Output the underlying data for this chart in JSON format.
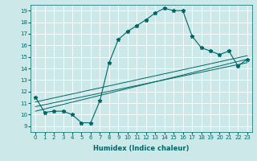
{
  "xlabel": "Humidex (Indice chaleur)",
  "ylabel": "",
  "bg_color": "#cce8e8",
  "line_color": "#006666",
  "xlim": [
    -0.5,
    23.5
  ],
  "ylim": [
    8.5,
    19.5
  ],
  "xticks": [
    0,
    1,
    2,
    3,
    4,
    5,
    6,
    7,
    8,
    9,
    10,
    11,
    12,
    13,
    14,
    15,
    16,
    17,
    18,
    19,
    20,
    21,
    22,
    23
  ],
  "yticks": [
    9,
    10,
    11,
    12,
    13,
    14,
    15,
    16,
    17,
    18,
    19
  ],
  "main_x": [
    0,
    1,
    2,
    3,
    4,
    5,
    6,
    7,
    8,
    9,
    10,
    11,
    12,
    13,
    14,
    15,
    16,
    17,
    18,
    19,
    20,
    21,
    22,
    23
  ],
  "main_y": [
    11.5,
    10.2,
    10.3,
    10.3,
    10.0,
    9.3,
    9.3,
    11.2,
    14.5,
    16.5,
    17.2,
    17.7,
    18.2,
    18.8,
    19.2,
    19.0,
    19.0,
    16.8,
    15.8,
    15.5,
    15.2,
    15.5,
    14.2,
    14.8
  ],
  "reg_line1_x": [
    0,
    23
  ],
  "reg_line1_y": [
    10.3,
    14.8
  ],
  "reg_line2_x": [
    0,
    23
  ],
  "reg_line2_y": [
    10.7,
    14.5
  ],
  "reg_line3_x": [
    0,
    23
  ],
  "reg_line3_y": [
    11.1,
    15.1
  ]
}
